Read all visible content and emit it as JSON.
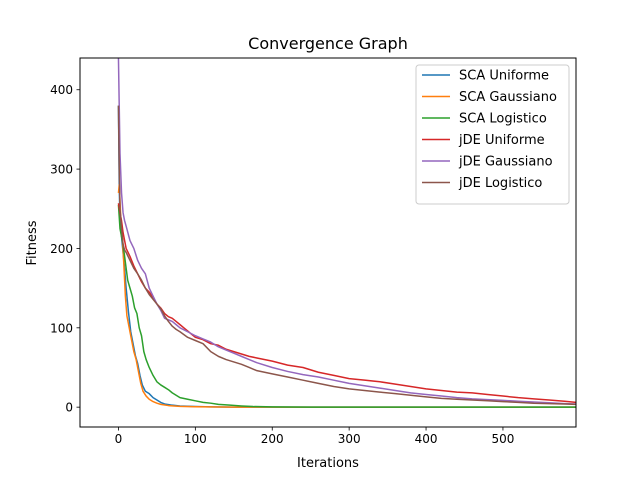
{
  "chart_data": {
    "type": "line",
    "title": "Convergence Graph",
    "xlabel": "Iterations",
    "ylabel": "Fitness",
    "xlim": [
      -50,
      595
    ],
    "ylim": [
      -25,
      440
    ],
    "xticks": [
      0,
      100,
      200,
      300,
      400,
      500
    ],
    "yticks": [
      0,
      100,
      200,
      300,
      400
    ],
    "legend_position": "top-right",
    "grid": false,
    "series": [
      {
        "name": "SCA Uniforme",
        "color": "#1f77b4",
        "points": [
          [
            0,
            380
          ],
          [
            1,
            280
          ],
          [
            2,
            235
          ],
          [
            5,
            205
          ],
          [
            8,
            175
          ],
          [
            10,
            150
          ],
          [
            13,
            120
          ],
          [
            16,
            95
          ],
          [
            19,
            80
          ],
          [
            22,
            65
          ],
          [
            25,
            55
          ],
          [
            28,
            40
          ],
          [
            31,
            28
          ],
          [
            35,
            20
          ],
          [
            40,
            17
          ],
          [
            45,
            12
          ],
          [
            50,
            9
          ],
          [
            55,
            6
          ],
          [
            60,
            4
          ],
          [
            70,
            2.5
          ],
          [
            80,
            1.5
          ],
          [
            100,
            0.8
          ],
          [
            120,
            0.3
          ],
          [
            150,
            0.1
          ],
          [
            200,
            0
          ],
          [
            595,
            0
          ]
        ]
      },
      {
        "name": "SCA Gaussiano",
        "color": "#ff7f0e",
        "points": [
          [
            0,
            270
          ],
          [
            1,
            280
          ],
          [
            3,
            240
          ],
          [
            5,
            215
          ],
          [
            7,
            180
          ],
          [
            9,
            140
          ],
          [
            11,
            115
          ],
          [
            14,
            100
          ],
          [
            17,
            85
          ],
          [
            20,
            70
          ],
          [
            23,
            60
          ],
          [
            26,
            45
          ],
          [
            29,
            30
          ],
          [
            32,
            20
          ],
          [
            36,
            14
          ],
          [
            40,
            10
          ],
          [
            45,
            7
          ],
          [
            50,
            5
          ],
          [
            55,
            3.5
          ],
          [
            65,
            2
          ],
          [
            80,
            1
          ],
          [
            100,
            0.5
          ],
          [
            150,
            0.1
          ],
          [
            200,
            0
          ],
          [
            595,
            0
          ]
        ]
      },
      {
        "name": "SCA Logistico",
        "color": "#2ca02c",
        "points": [
          [
            0,
            255
          ],
          [
            2,
            225
          ],
          [
            4,
            215
          ],
          [
            6,
            205
          ],
          [
            8,
            190
          ],
          [
            10,
            175
          ],
          [
            12,
            160
          ],
          [
            15,
            150
          ],
          [
            18,
            140
          ],
          [
            21,
            125
          ],
          [
            24,
            118
          ],
          [
            27,
            100
          ],
          [
            30,
            90
          ],
          [
            33,
            70
          ],
          [
            36,
            60
          ],
          [
            40,
            50
          ],
          [
            45,
            40
          ],
          [
            50,
            32
          ],
          [
            55,
            28
          ],
          [
            60,
            25
          ],
          [
            65,
            22
          ],
          [
            70,
            18
          ],
          [
            80,
            12
          ],
          [
            90,
            10
          ],
          [
            100,
            8
          ],
          [
            110,
            6
          ],
          [
            120,
            5
          ],
          [
            130,
            3.5
          ],
          [
            145,
            2.5
          ],
          [
            160,
            1.5
          ],
          [
            175,
            0.8
          ],
          [
            200,
            0.3
          ],
          [
            250,
            0.1
          ],
          [
            300,
            0
          ],
          [
            595,
            0
          ]
        ]
      },
      {
        "name": "jDE Uniforme",
        "color": "#d62728",
        "points": [
          [
            0,
            257
          ],
          [
            2,
            245
          ],
          [
            4,
            235
          ],
          [
            6,
            220
          ],
          [
            8,
            210
          ],
          [
            10,
            200
          ],
          [
            15,
            190
          ],
          [
            20,
            178
          ],
          [
            25,
            168
          ],
          [
            30,
            158
          ],
          [
            35,
            150
          ],
          [
            40,
            145
          ],
          [
            45,
            138
          ],
          [
            50,
            130
          ],
          [
            55,
            125
          ],
          [
            60,
            118
          ],
          [
            65,
            114
          ],
          [
            70,
            112
          ],
          [
            75,
            108
          ],
          [
            80,
            104
          ],
          [
            85,
            100
          ],
          [
            90,
            96
          ],
          [
            95,
            92
          ],
          [
            100,
            88
          ],
          [
            110,
            85
          ],
          [
            120,
            80
          ],
          [
            130,
            78
          ],
          [
            140,
            73
          ],
          [
            150,
            70
          ],
          [
            160,
            67
          ],
          [
            170,
            64
          ],
          [
            180,
            62
          ],
          [
            200,
            58
          ],
          [
            220,
            53
          ],
          [
            240,
            50
          ],
          [
            260,
            44
          ],
          [
            280,
            40
          ],
          [
            300,
            36
          ],
          [
            320,
            34
          ],
          [
            340,
            32
          ],
          [
            360,
            29
          ],
          [
            380,
            26
          ],
          [
            400,
            23
          ],
          [
            420,
            21
          ],
          [
            440,
            19
          ],
          [
            460,
            18
          ],
          [
            480,
            16
          ],
          [
            500,
            14
          ],
          [
            520,
            12
          ],
          [
            540,
            10.5
          ],
          [
            560,
            9
          ],
          [
            580,
            7.5
          ],
          [
            595,
            6
          ]
        ]
      },
      {
        "name": "jDE Gaussiano",
        "color": "#9467bd",
        "points": [
          [
            0,
            440
          ],
          [
            1,
            380
          ],
          [
            2,
            320
          ],
          [
            4,
            270
          ],
          [
            6,
            245
          ],
          [
            8,
            235
          ],
          [
            10,
            228
          ],
          [
            15,
            210
          ],
          [
            20,
            200
          ],
          [
            25,
            185
          ],
          [
            30,
            175
          ],
          [
            35,
            168
          ],
          [
            40,
            150
          ],
          [
            45,
            140
          ],
          [
            50,
            130
          ],
          [
            55,
            122
          ],
          [
            60,
            112
          ],
          [
            65,
            110
          ],
          [
            70,
            108
          ],
          [
            75,
            104
          ],
          [
            80,
            100
          ],
          [
            90,
            95
          ],
          [
            100,
            90
          ],
          [
            110,
            86
          ],
          [
            120,
            82
          ],
          [
            130,
            76
          ],
          [
            140,
            72
          ],
          [
            150,
            68
          ],
          [
            160,
            64
          ],
          [
            170,
            60
          ],
          [
            180,
            56
          ],
          [
            200,
            50
          ],
          [
            220,
            45
          ],
          [
            240,
            41
          ],
          [
            260,
            38
          ],
          [
            280,
            34
          ],
          [
            300,
            30
          ],
          [
            320,
            27
          ],
          [
            340,
            24
          ],
          [
            360,
            21
          ],
          [
            380,
            18
          ],
          [
            400,
            16
          ],
          [
            420,
            14
          ],
          [
            440,
            12
          ],
          [
            460,
            10.5
          ],
          [
            480,
            9.5
          ],
          [
            500,
            8.5
          ],
          [
            520,
            7.5
          ],
          [
            540,
            6.5
          ],
          [
            560,
            5.5
          ],
          [
            580,
            4.5
          ],
          [
            595,
            4
          ]
        ]
      },
      {
        "name": "jDE Logistico",
        "color": "#8c564b",
        "points": [
          [
            0,
            380
          ],
          [
            1,
            300
          ],
          [
            2,
            250
          ],
          [
            4,
            225
          ],
          [
            6,
            205
          ],
          [
            8,
            198
          ],
          [
            10,
            195
          ],
          [
            15,
            185
          ],
          [
            20,
            175
          ],
          [
            25,
            168
          ],
          [
            30,
            160
          ],
          [
            35,
            150
          ],
          [
            40,
            142
          ],
          [
            45,
            136
          ],
          [
            50,
            130
          ],
          [
            55,
            124
          ],
          [
            60,
            115
          ],
          [
            65,
            108
          ],
          [
            70,
            102
          ],
          [
            75,
            98
          ],
          [
            80,
            95
          ],
          [
            90,
            88
          ],
          [
            100,
            84
          ],
          [
            110,
            80
          ],
          [
            120,
            70
          ],
          [
            130,
            64
          ],
          [
            140,
            60
          ],
          [
            150,
            57
          ],
          [
            160,
            54
          ],
          [
            170,
            50
          ],
          [
            180,
            46
          ],
          [
            200,
            42
          ],
          [
            220,
            38
          ],
          [
            240,
            34
          ],
          [
            260,
            30
          ],
          [
            280,
            26
          ],
          [
            300,
            23
          ],
          [
            320,
            21
          ],
          [
            340,
            19
          ],
          [
            360,
            17
          ],
          [
            380,
            15
          ],
          [
            400,
            13
          ],
          [
            420,
            11
          ],
          [
            440,
            10
          ],
          [
            460,
            9
          ],
          [
            480,
            8
          ],
          [
            500,
            7
          ],
          [
            520,
            6
          ],
          [
            540,
            5
          ],
          [
            560,
            4.5
          ],
          [
            580,
            4
          ],
          [
            595,
            3.5
          ]
        ]
      }
    ]
  }
}
